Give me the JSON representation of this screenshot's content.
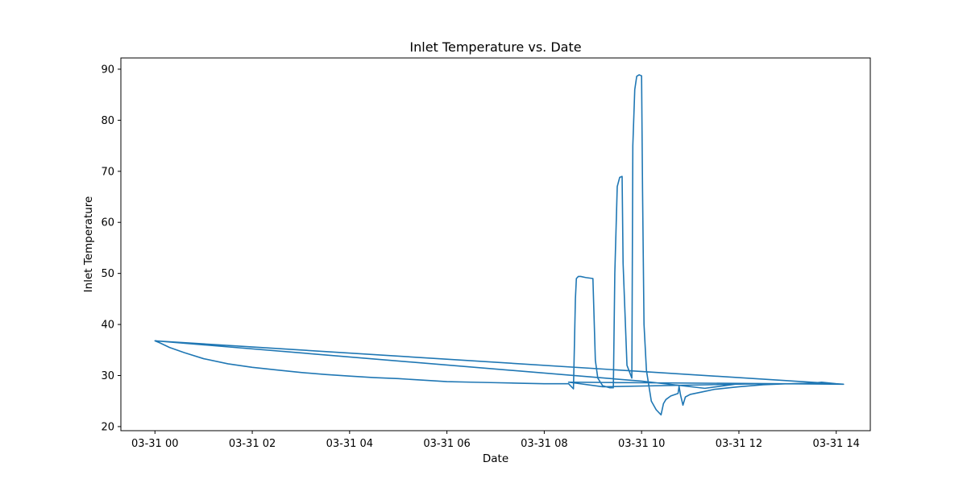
{
  "chart_data": {
    "type": "line",
    "title": "Inlet Temperature vs. Date",
    "xlabel": "Date",
    "ylabel": "Inlet Temperature",
    "xlim": [
      -0.7,
      14.7
    ],
    "ylim": [
      19.2,
      92.2
    ],
    "x_unit": "hours after 03-31 00:00",
    "xticks": [
      {
        "value": 0,
        "label": "03-31 00"
      },
      {
        "value": 2,
        "label": "03-31 02"
      },
      {
        "value": 4,
        "label": "03-31 04"
      },
      {
        "value": 6,
        "label": "03-31 06"
      },
      {
        "value": 8,
        "label": "03-31 08"
      },
      {
        "value": 10,
        "label": "03-31 10"
      },
      {
        "value": 12,
        "label": "03-31 12"
      },
      {
        "value": 14,
        "label": "03-31 14"
      }
    ],
    "yticks": [
      20,
      30,
      40,
      50,
      60,
      70,
      80,
      90
    ],
    "grid": false,
    "legend": "none",
    "series": [
      {
        "color": "#1f77b4",
        "x": [
          0.0,
          0.1,
          0.3,
          0.6,
          1.0,
          1.5,
          2.0,
          2.5,
          3.0,
          3.5,
          4.0,
          4.5,
          5.0,
          5.5,
          6.0,
          6.5,
          7.0,
          7.5,
          8.0,
          8.5,
          8.6,
          8.62,
          8.64,
          8.66,
          8.7,
          8.75,
          8.85,
          9.0,
          9.05,
          9.1,
          9.2,
          9.35,
          9.42,
          9.45,
          9.5,
          9.55,
          9.6,
          9.62,
          9.7,
          9.8,
          9.82,
          9.86,
          9.9,
          9.95,
          10.0,
          10.02,
          10.05,
          10.1,
          10.15,
          10.2,
          10.3,
          10.4,
          10.45,
          10.5,
          10.6,
          10.75,
          10.77,
          10.8,
          10.85,
          10.9,
          11.0,
          11.2,
          11.5,
          11.8,
          12.0,
          12.5,
          13.0,
          13.5,
          13.7,
          14.0,
          14.15,
          0.0,
          10.0,
          11.3,
          12.0,
          14.0,
          14.15,
          8.5,
          9.2,
          12.5
        ],
        "y": [
          36.8,
          36.4,
          35.5,
          34.5,
          33.3,
          32.3,
          31.6,
          31.1,
          30.6,
          30.2,
          29.9,
          29.6,
          29.4,
          29.1,
          28.8,
          28.7,
          28.6,
          28.5,
          28.4,
          28.4,
          27.4,
          36.0,
          45.0,
          49.0,
          49.4,
          49.4,
          49.2,
          49.0,
          33.0,
          29.5,
          28.0,
          27.6,
          27.6,
          50.0,
          67.0,
          68.8,
          69.0,
          52.0,
          32.0,
          29.5,
          75.0,
          86.0,
          88.6,
          88.9,
          88.7,
          66.0,
          40.0,
          31.0,
          28.0,
          25.0,
          23.3,
          22.3,
          24.5,
          25.3,
          26.0,
          26.5,
          27.9,
          26.2,
          24.2,
          25.8,
          26.3,
          26.7,
          27.3,
          27.6,
          27.8,
          28.2,
          28.4,
          28.5,
          28.7,
          28.4,
          28.3,
          36.8,
          28.9,
          27.5,
          28.4,
          28.4,
          28.3,
          28.7,
          27.8,
          28.4
        ]
      }
    ]
  }
}
